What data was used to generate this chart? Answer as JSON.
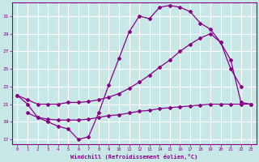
{
  "xlabel": "Windchill (Refroidissement éolien,°C)",
  "ylabel": "",
  "background_color": "#c8e8e8",
  "grid_color": "#aacccc",
  "line_color": "#880088",
  "xlim": [
    -0.5,
    23.5
  ],
  "ylim": [
    16.5,
    32.5
  ],
  "xticks": [
    0,
    1,
    2,
    3,
    4,
    5,
    6,
    7,
    8,
    9,
    10,
    11,
    12,
    13,
    14,
    15,
    16,
    17,
    18,
    19,
    20,
    21,
    22,
    23
  ],
  "yticks": [
    17,
    19,
    21,
    23,
    25,
    27,
    29,
    31
  ],
  "curve1_x": [
    0,
    1,
    2,
    3,
    4,
    5,
    6,
    7,
    8,
    9,
    10,
    11,
    12,
    13,
    14,
    15,
    16,
    17,
    18,
    19,
    20,
    21,
    22
  ],
  "curve1_y": [
    22.0,
    21.0,
    19.5,
    19.0,
    18.5,
    18.2,
    17.0,
    17.3,
    20.0,
    23.2,
    26.2,
    29.2,
    31.0,
    30.7,
    32.0,
    32.2,
    32.0,
    31.5,
    30.2,
    29.5,
    28.0,
    25.0,
    23.0
  ],
  "curve2_x": [
    0,
    1,
    2,
    3,
    4,
    5,
    6,
    7,
    8,
    9,
    10,
    11,
    12,
    13,
    14,
    15,
    16,
    17,
    18,
    19,
    20,
    21,
    22,
    23
  ],
  "curve2_y": [
    22.0,
    21.5,
    21.0,
    21.0,
    21.0,
    21.2,
    21.2,
    21.3,
    21.5,
    21.8,
    22.2,
    22.8,
    23.5,
    24.3,
    25.2,
    26.0,
    27.0,
    27.8,
    28.5,
    29.0,
    28.0,
    26.0,
    21.2,
    21.0
  ],
  "curve3_x": [
    1,
    2,
    3,
    4,
    5,
    6,
    7,
    8,
    9,
    10,
    11,
    12,
    13,
    14,
    15,
    16,
    17,
    18,
    19,
    20,
    21,
    22,
    23
  ],
  "curve3_y": [
    20.0,
    19.5,
    19.3,
    19.2,
    19.2,
    19.2,
    19.3,
    19.5,
    19.7,
    19.8,
    20.0,
    20.2,
    20.3,
    20.5,
    20.6,
    20.7,
    20.8,
    20.9,
    21.0,
    21.0,
    21.0,
    21.0,
    21.0
  ]
}
